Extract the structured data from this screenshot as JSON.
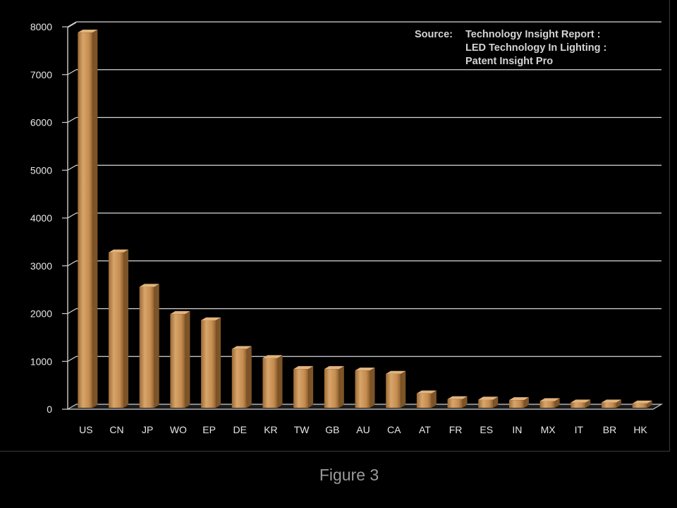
{
  "chart_data": {
    "type": "bar",
    "categories": [
      "US",
      "CN",
      "JP",
      "WO",
      "EP",
      "DE",
      "KR",
      "TW",
      "GB",
      "AU",
      "CA",
      "AT",
      "FR",
      "ES",
      "IN",
      "MX",
      "IT",
      "BR",
      "HK"
    ],
    "values": [
      7850,
      3250,
      2530,
      1960,
      1830,
      1230,
      1040,
      810,
      810,
      780,
      710,
      300,
      180,
      170,
      160,
      140,
      110,
      110,
      90
    ],
    "ylim": [
      0,
      8000
    ],
    "yticks": [
      0,
      1000,
      2000,
      3000,
      4000,
      5000,
      6000,
      7000,
      8000
    ],
    "grid": true,
    "bar_color": "#C8955A",
    "background": "#000000",
    "annotation": {
      "label": "Source:",
      "lines": [
        "Technology Insight Report :",
        "LED Technology In Lighting :",
        "Patent Insight Pro"
      ]
    }
  },
  "caption": "Figure 3"
}
